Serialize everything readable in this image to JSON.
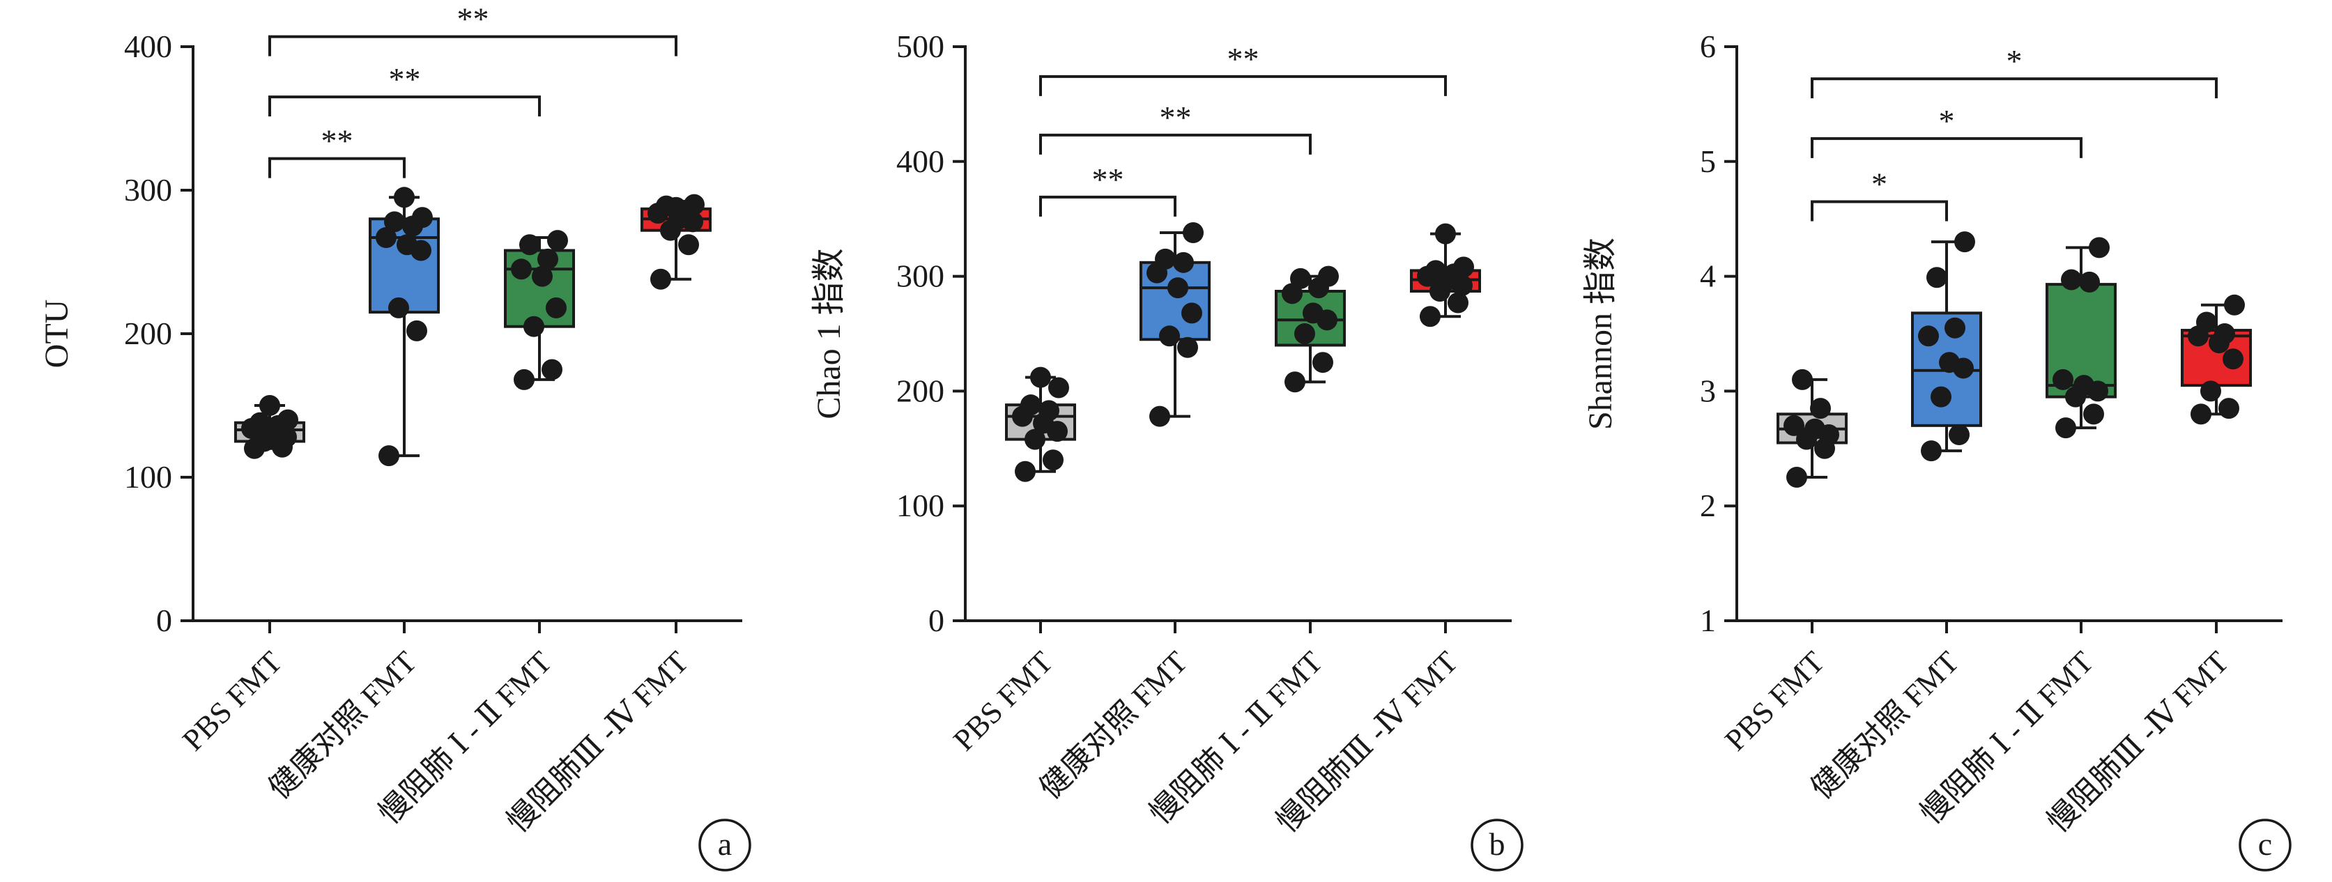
{
  "chart_data": [
    {
      "type": "box",
      "panel_label": "a",
      "ylabel": "OTU",
      "ylim": [
        0,
        400
      ],
      "yticks": [
        0,
        100,
        200,
        300,
        400
      ],
      "categories": [
        "PBS FMT",
        "健康对照 FMT",
        "慢阻肺 Ⅰ - Ⅱ FMT",
        "慢阻肺Ⅲ -Ⅳ FMT"
      ],
      "box_colors": [
        "#bfbfbf",
        "#4a86cf",
        "#3a8c4e",
        "#e8262a"
      ],
      "boxes": [
        {
          "min": 120,
          "q1": 125,
          "median": 133,
          "q3": 138,
          "max": 150
        },
        {
          "min": 115,
          "q1": 215,
          "median": 267,
          "q3": 280,
          "max": 295
        },
        {
          "min": 168,
          "q1": 205,
          "median": 245,
          "q3": 258,
          "max": 267
        },
        {
          "min": 238,
          "q1": 272,
          "median": 280,
          "q3": 287,
          "max": 290
        }
      ],
      "points": [
        [
          120,
          121,
          125,
          128,
          131,
          134,
          136,
          138,
          140,
          150
        ],
        [
          115,
          202,
          218,
          258,
          262,
          267,
          275,
          278,
          281,
          295
        ],
        [
          168,
          175,
          205,
          218,
          240,
          245,
          252,
          262,
          265
        ],
        [
          238,
          262,
          272,
          278,
          280,
          284,
          286,
          289,
          290,
          288
        ]
      ],
      "significance": [
        {
          "from": 0,
          "to": 1,
          "y": 322,
          "label": "**"
        },
        {
          "from": 0,
          "to": 2,
          "y": 365,
          "label": "**"
        },
        {
          "from": 0,
          "to": 3,
          "y": 407,
          "label": "**"
        }
      ]
    },
    {
      "type": "box",
      "panel_label": "b",
      "ylabel": "Chao 1 指数",
      "ylim": [
        0,
        500
      ],
      "yticks": [
        0,
        100,
        200,
        300,
        400,
        500
      ],
      "categories": [
        "PBS FMT",
        "健康对照 FMT",
        "慢阻肺 Ⅰ - Ⅱ FMT",
        "慢阻肺Ⅲ -Ⅳ FMT"
      ],
      "box_colors": [
        "#bfbfbf",
        "#4a86cf",
        "#3a8c4e",
        "#e8262a"
      ],
      "boxes": [
        {
          "min": 130,
          "q1": 158,
          "median": 178,
          "q3": 188,
          "max": 212
        },
        {
          "min": 178,
          "q1": 245,
          "median": 290,
          "q3": 312,
          "max": 338
        },
        {
          "min": 208,
          "q1": 240,
          "median": 262,
          "q3": 287,
          "max": 300
        },
        {
          "min": 265,
          "q1": 287,
          "median": 297,
          "q3": 305,
          "max": 337
        }
      ],
      "points": [
        [
          130,
          140,
          158,
          165,
          172,
          178,
          183,
          188,
          203,
          212
        ],
        [
          178,
          238,
          248,
          268,
          290,
          303,
          312,
          315,
          338
        ],
        [
          208,
          225,
          250,
          262,
          268,
          285,
          290,
          298,
          300
        ],
        [
          265,
          277,
          287,
          292,
          297,
          300,
          302,
          305,
          308,
          337
        ]
      ],
      "significance": [
        {
          "from": 0,
          "to": 1,
          "y": 369,
          "label": "**"
        },
        {
          "from": 0,
          "to": 2,
          "y": 423,
          "label": "**"
        },
        {
          "from": 0,
          "to": 3,
          "y": 474,
          "label": "**"
        }
      ]
    },
    {
      "type": "box",
      "panel_label": "c",
      "ylabel": "Shannon 指数",
      "ylim": [
        1,
        6
      ],
      "yticks": [
        1,
        2,
        3,
        4,
        5,
        6
      ],
      "categories": [
        "PBS FMT",
        "健康对照 FMT",
        "慢阻肺 Ⅰ - Ⅱ FMT",
        "慢阻肺Ⅲ -Ⅳ FMT"
      ],
      "box_colors": [
        "#bfbfbf",
        "#4a86cf",
        "#3a8c4e",
        "#e8262a"
      ],
      "boxes": [
        {
          "min": 2.25,
          "q1": 2.55,
          "median": 2.67,
          "q3": 2.8,
          "max": 3.1
        },
        {
          "min": 2.48,
          "q1": 2.7,
          "median": 3.18,
          "q3": 3.68,
          "max": 4.3
        },
        {
          "min": 2.68,
          "q1": 2.95,
          "median": 3.05,
          "q3": 3.93,
          "max": 4.25
        },
        {
          "min": 2.8,
          "q1": 3.05,
          "median": 3.48,
          "q3": 3.53,
          "max": 3.75
        }
      ],
      "points": [
        [
          2.25,
          2.5,
          2.58,
          2.62,
          2.67,
          2.7,
          2.85,
          3.1
        ],
        [
          2.48,
          2.62,
          2.95,
          3.2,
          3.25,
          3.48,
          3.55,
          3.99,
          4.3
        ],
        [
          2.68,
          2.8,
          2.95,
          3.0,
          3.05,
          3.1,
          3.95,
          3.97,
          4.25
        ],
        [
          2.8,
          2.85,
          3.0,
          3.28,
          3.42,
          3.48,
          3.5,
          3.6,
          3.75
        ]
      ],
      "significance": [
        {
          "from": 0,
          "to": 1,
          "y": 4.65,
          "label": "*"
        },
        {
          "from": 0,
          "to": 2,
          "y": 5.2,
          "label": "*"
        },
        {
          "from": 0,
          "to": 3,
          "y": 5.72,
          "label": "*"
        }
      ]
    }
  ]
}
